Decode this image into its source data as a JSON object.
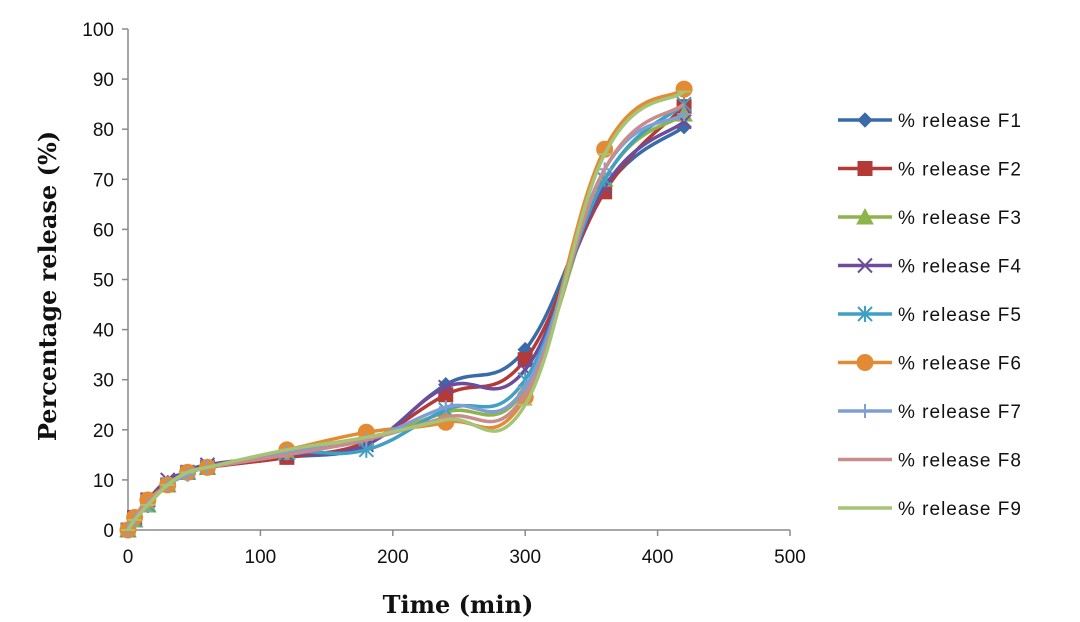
{
  "chart_data": {
    "type": "line",
    "title": "",
    "xlabel": "Time (min)",
    "ylabel": "Percentage release (%)",
    "xlim": [
      0,
      500
    ],
    "ylim": [
      0,
      100
    ],
    "xticks": [
      0,
      100,
      200,
      300,
      400,
      500
    ],
    "yticks": [
      0,
      10,
      20,
      30,
      40,
      50,
      60,
      70,
      80,
      90,
      100
    ],
    "grid": false,
    "legend_position": "right",
    "x": [
      0,
      5,
      15,
      30,
      45,
      60,
      120,
      180,
      240,
      300,
      360,
      420
    ],
    "series": [
      {
        "name": "% release F1",
        "color": "#3a6aa8",
        "marker": "diamond",
        "values": [
          0,
          2,
          5.5,
          9.5,
          11.5,
          12.5,
          14.5,
          17,
          29,
          36,
          68,
          80.5
        ]
      },
      {
        "name": "% release F2",
        "color": "#b33a36",
        "marker": "square",
        "values": [
          0,
          2.5,
          6,
          9,
          11.5,
          12.5,
          14.5,
          17.5,
          27,
          34,
          67.5,
          84.5
        ]
      },
      {
        "name": "% release F3",
        "color": "#8db34a",
        "marker": "triangle",
        "values": [
          0,
          2,
          5,
          9,
          11.5,
          12.5,
          15.5,
          18,
          23.5,
          28,
          70,
          83
        ]
      },
      {
        "name": "% release F4",
        "color": "#6d4c9a",
        "marker": "x",
        "values": [
          0,
          2.5,
          6,
          10,
          11.5,
          13,
          15,
          17,
          28.5,
          32,
          68.5,
          81.5
        ]
      },
      {
        "name": "% release F5",
        "color": "#3fa0c4",
        "marker": "asterisk",
        "values": [
          0,
          2,
          5,
          9,
          11.5,
          12.5,
          15.5,
          16,
          24,
          30,
          70,
          85
        ]
      },
      {
        "name": "% release F6",
        "color": "#e38b34",
        "marker": "circle",
        "values": [
          0,
          2.5,
          6,
          9,
          11.5,
          12.5,
          16,
          19.5,
          21.5,
          26.5,
          76,
          88
        ]
      },
      {
        "name": "% release F7",
        "color": "#7f9fd3",
        "marker": "plus",
        "values": [
          0,
          2,
          5,
          9,
          11,
          12.5,
          15.5,
          18,
          24.5,
          28.5,
          72,
          83
        ]
      },
      {
        "name": "% release F8",
        "color": "#c98c8c",
        "marker": "none",
        "values": [
          0,
          2.5,
          5.5,
          9,
          11.5,
          12.5,
          15,
          18,
          22.5,
          27,
          72,
          85
        ]
      },
      {
        "name": "% release F9",
        "color": "#a6c475",
        "marker": "dash",
        "values": [
          0,
          2,
          5,
          9,
          11.5,
          12.5,
          16,
          18.5,
          22,
          25,
          75,
          87.5
        ]
      }
    ]
  }
}
